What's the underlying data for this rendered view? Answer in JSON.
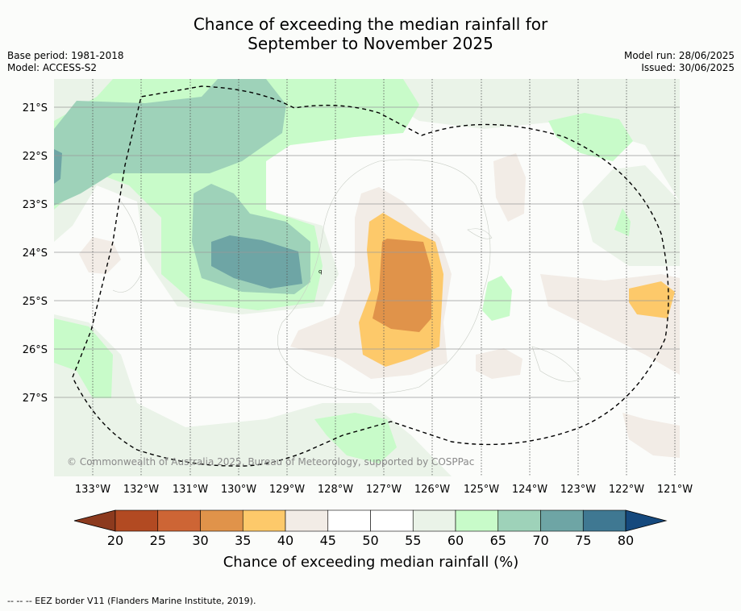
{
  "title": {
    "line1": "Chance of exceeding the median rainfall for",
    "line2": "September to November 2025"
  },
  "meta_left": {
    "base_period": "Base period: 1981-2018",
    "model": "Model: ACCESS-S2"
  },
  "meta_right": {
    "model_run": "Model run: 28/06/2025",
    "issued": "Issued: 30/06/2025"
  },
  "map": {
    "lat_labels": [
      "21°S",
      "22°S",
      "23°S",
      "24°S",
      "25°S",
      "26°S",
      "27°S"
    ],
    "lon_labels": [
      "133°W",
      "132°W",
      "131°W",
      "130°W",
      "129°W",
      "128°W",
      "127°W",
      "126°W",
      "125°W",
      "124°W",
      "123°W",
      "122°W",
      "121°W"
    ],
    "copyright": "© Commonwealth of Australia 2025, Bureau of Meteorology, supported by COSPPac",
    "contour_label": "q"
  },
  "colorbar": {
    "ticks": [
      "20",
      "25",
      "30",
      "35",
      "40",
      "45",
      "50",
      "55",
      "60",
      "65",
      "70",
      "75",
      "80"
    ],
    "colors": [
      "#8c3a1e",
      "#b24a22",
      "#cd6535",
      "#e0934a",
      "#fdc96a",
      "#f2ece6",
      "#ffffff",
      "#ffffff",
      "#eaf3e8",
      "#c8fbc9",
      "#9ed2b9",
      "#6ea5a5",
      "#3f7892",
      "#15497d"
    ],
    "label": "Chance of exceeding median rainfall (%)"
  },
  "legend_note": "--  --  -- EEZ border V11 (Flanders Marine Institute, 2019)."
}
